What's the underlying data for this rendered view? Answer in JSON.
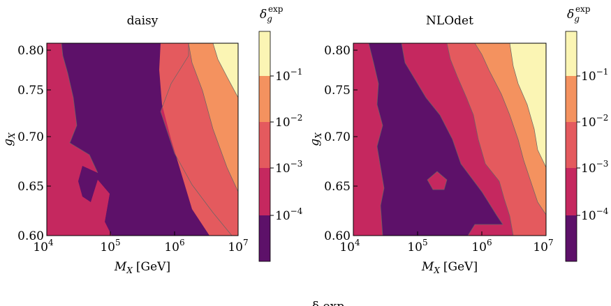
{
  "figure": {
    "colorbar_label_base": "δ",
    "colorbar_label_sub": "g",
    "colorbar_label_sup": "exp",
    "caption_fragment": "δ exp"
  },
  "chart_data": [
    {
      "type": "heatmap",
      "title": "daisy",
      "xlabel_main": "M",
      "xlabel_sub": "X",
      "xlabel_unit": "[GeV]",
      "ylabel_main": "g",
      "ylabel_sub": "X",
      "x_scale": "log",
      "xlim": [
        10000,
        10000000
      ],
      "ylim": [
        0.6,
        0.81
      ],
      "x_ticks": [
        {
          "base": "10",
          "exp": "4"
        },
        {
          "base": "10",
          "exp": "5"
        },
        {
          "base": "10",
          "exp": "6"
        },
        {
          "base": "10",
          "exp": "7"
        }
      ],
      "y_ticks": [
        "0.60",
        "0.65",
        "0.70",
        "0.75",
        "0.80"
      ],
      "levels": [
        "<1e-4",
        "1e-4 to 1e-3",
        "1e-3 to 1e-2",
        "1e-2 to 1e-1",
        ">1e-1"
      ]
    },
    {
      "type": "heatmap",
      "title": "NLOdet",
      "xlabel_main": "M",
      "xlabel_sub": "X",
      "xlabel_unit": "[GeV]",
      "ylabel_main": "g",
      "ylabel_sub": "X",
      "x_scale": "log",
      "xlim": [
        10000,
        10000000
      ],
      "ylim": [
        0.6,
        0.81
      ],
      "x_ticks": [
        {
          "base": "10",
          "exp": "4"
        },
        {
          "base": "10",
          "exp": "5"
        },
        {
          "base": "10",
          "exp": "6"
        },
        {
          "base": "10",
          "exp": "7"
        }
      ],
      "y_ticks": [
        "0.60",
        "0.65",
        "0.70",
        "0.75",
        "0.80"
      ],
      "levels": [
        "<1e-4",
        "1e-4 to 1e-3",
        "1e-3 to 1e-2",
        "1e-2 to 1e-1",
        ">1e-1"
      ]
    }
  ],
  "colorbar": {
    "scale": "log",
    "ticks": [
      {
        "base": "10",
        "exp": "−1"
      },
      {
        "base": "10",
        "exp": "−2"
      },
      {
        "base": "10",
        "exp": "−3"
      },
      {
        "base": "10",
        "exp": "−4"
      }
    ],
    "colors": {
      "lvl0": "#5d1169",
      "lvl1": "#c5285f",
      "lvl2": "#e45a5e",
      "lvl3": "#f4925f",
      "lvl4": "#fbf5b4"
    }
  }
}
